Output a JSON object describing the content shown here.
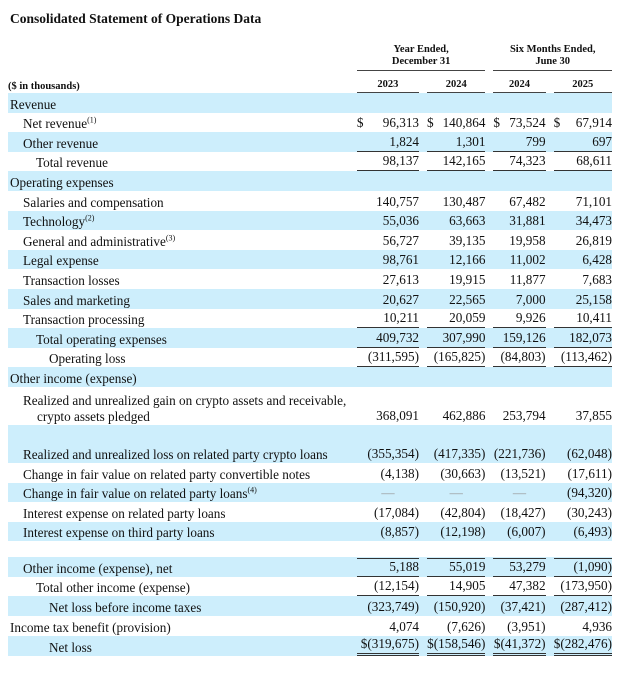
{
  "title": "Consolidated Statement of Operations Data",
  "header": {
    "group1": [
      "Year Ended,",
      "December 31"
    ],
    "group2": [
      "Six Months Ended,",
      "June 30"
    ],
    "units": "($ in thousands)",
    "years": [
      "2023",
      "2024",
      "2024",
      "2025"
    ]
  },
  "colors": {
    "row_shade": "#cdeefc"
  },
  "rows": [
    {
      "label": "Revenue",
      "indent": 0,
      "shade": true
    },
    {
      "label": "Net revenue",
      "sup": "(1)",
      "indent": 1,
      "values": [
        "96,313",
        "140,864",
        "73,524",
        "67,914"
      ],
      "dollar": true
    },
    {
      "label": "Other revenue",
      "indent": 1,
      "shade": true,
      "values": [
        "1,824",
        "1,301",
        "799",
        "697"
      ],
      "line": "single"
    },
    {
      "label": "Total revenue",
      "indent": 2,
      "values": [
        "98,137",
        "142,165",
        "74,323",
        "68,611"
      ],
      "line": "single"
    },
    {
      "label": "Operating expenses",
      "indent": 0,
      "shade": true
    },
    {
      "label": "Salaries and compensation",
      "indent": 1,
      "values": [
        "140,757",
        "130,487",
        "67,482",
        "71,101"
      ]
    },
    {
      "label": "Technology",
      "sup": "(2)",
      "indent": 1,
      "shade": true,
      "values": [
        "55,036",
        "63,663",
        "31,881",
        "34,473"
      ]
    },
    {
      "label": "General and administrative",
      "sup": "(3)",
      "indent": 1,
      "values": [
        "56,727",
        "39,135",
        "19,958",
        "26,819"
      ]
    },
    {
      "label": "Legal expense",
      "indent": 1,
      "shade": true,
      "values": [
        "98,761",
        "12,166",
        "11,002",
        "6,428"
      ]
    },
    {
      "label": "Transaction losses",
      "indent": 1,
      "values": [
        "27,613",
        "19,915",
        "11,877",
        "7,683"
      ]
    },
    {
      "label": "Sales and marketing",
      "indent": 1,
      "shade": true,
      "values": [
        "20,627",
        "22,565",
        "7,000",
        "25,158"
      ]
    },
    {
      "label": "Transaction processing",
      "indent": 1,
      "values": [
        "10,211",
        "20,059",
        "9,926",
        "10,411"
      ],
      "line": "single"
    },
    {
      "label": "Total operating expenses",
      "indent": 2,
      "shade": true,
      "values": [
        "409,732",
        "307,990",
        "159,126",
        "182,073"
      ],
      "line": "single"
    },
    {
      "label": "Operating loss",
      "indent": 3,
      "values": [
        "(311,595)",
        "(165,825)",
        "(84,803)",
        "(113,462)"
      ],
      "line": "single"
    },
    {
      "label": "Other income (expense)",
      "indent": 0,
      "shade": true
    },
    {
      "label": "Realized and unrealized gain on crypto assets and receivable, crypto assets pledged",
      "indent": 1,
      "two": true,
      "values": [
        "368,091",
        "462,886",
        "253,794",
        "37,855"
      ]
    },
    {
      "label": "Realized and unrealized loss on related party crypto loans",
      "indent": 1,
      "two": true,
      "shade": true,
      "values": [
        "(355,354)",
        "(417,335)",
        "(221,736)",
        "(62,048)"
      ]
    },
    {
      "label": "Change in fair value on related party convertible notes",
      "indent": 1,
      "values": [
        "(4,138)",
        "(30,663)",
        "(13,521)",
        "(17,611)"
      ]
    },
    {
      "label": "Change in fair value on related party loans",
      "sup": "(4)",
      "indent": 1,
      "shade": true,
      "values": [
        "—",
        "—",
        "—",
        "(94,320)"
      ]
    },
    {
      "label": "Interest expense on related party loans",
      "indent": 1,
      "values": [
        "(17,084)",
        "(42,804)",
        "(18,427)",
        "(30,243)"
      ]
    },
    {
      "label": "Interest expense on third party loans",
      "indent": 1,
      "shade": true,
      "values": [
        "(8,857)",
        "(12,198)",
        "(6,007)",
        "(6,493)"
      ]
    },
    {
      "blank": true
    },
    {
      "label": "Other income (expense), net",
      "indent": 1,
      "shade": true,
      "values": [
        "5,188",
        "55,019",
        "53,279",
        "(1,090)"
      ],
      "line": "single",
      "top": true
    },
    {
      "label": "Total other income (expense)",
      "indent": 2,
      "values": [
        "(12,154)",
        "14,905",
        "47,382",
        "(173,950)"
      ],
      "line": "single"
    },
    {
      "label": "Net loss before income taxes",
      "indent": 3,
      "shade": true,
      "values": [
        "(323,749)",
        "(150,920)",
        "(37,421)",
        "(287,412)"
      ]
    },
    {
      "label": "Income tax benefit (provision)",
      "indent": 0,
      "values": [
        "4,074",
        "(7,626)",
        "(3,951)",
        "4,936"
      ]
    },
    {
      "label": "Net loss",
      "indent": 3,
      "shade": true,
      "values": [
        "$(319,675)",
        "$(158,546)",
        "$(41,372)",
        "$(282,476)"
      ],
      "line": "double"
    }
  ]
}
